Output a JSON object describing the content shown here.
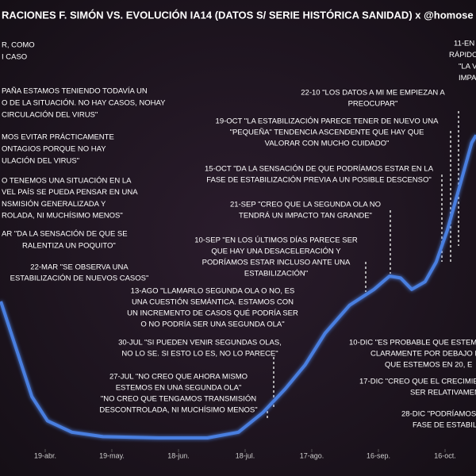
{
  "chart_data": {
    "type": "line",
    "title": "RACIONES F. SIMÓN VS. EVOLUCIÓN IA14 (DATOS S/ SERIE HISTÓRICA SANIDAD)  x @homose",
    "x": [
      -20,
      -13,
      -6,
      1,
      12,
      26,
      51,
      73,
      87,
      98,
      108,
      117,
      126,
      137,
      148,
      155,
      160,
      165,
      171,
      176,
      181,
      187,
      192,
      194
    ],
    "values": [
      225,
      150,
      75,
      37,
      19,
      12,
      10,
      10,
      19,
      50,
      87,
      125,
      175,
      219,
      244,
      265,
      262,
      244,
      256,
      287,
      337,
      412,
      475,
      487
    ],
    "color": "#4a7fe0",
    "xlim": [
      -20.36,
      193.93
    ],
    "ylim": [
      0,
      550
    ],
    "xticks": [
      {
        "value": 0,
        "label": "19-abr."
      },
      {
        "value": 30,
        "label": "19-may."
      },
      {
        "value": 60,
        "label": "18-jun."
      },
      {
        "value": 90,
        "label": "18-jul."
      },
      {
        "value": 120,
        "label": "17-ago."
      },
      {
        "value": 150,
        "label": "16-sep."
      },
      {
        "value": 180,
        "label": "16-oct."
      }
    ],
    "annotations": [
      [
        "R, COMO",
        "I CASO"
      ],
      [
        "PAÑA ESTAMOS TENIENDO TODAVÍA UN",
        "O DE LA SITUACIÓN.  NO HAY CASOS, NOHAY",
        "CIRCULACIÓN DEL VIRUS\""
      ],
      [
        "MOS EVITAR PRÁCTICAMENTE",
        "ONTAGIOS PORQUE NO HAY",
        "ULACIÓN DEL VIRUS\""
      ],
      [
        "O TENEMOS UNA SITUACIÓN EN LA",
        "VEL PAÍS SE PUEDA PENSAR EN UNA",
        "NSMISIÓN GENERALIZADA Y",
        "ROLADA, NI MUCHÍSIMO MENOS\""
      ],
      [
        "AR \"DA LA SENSACIÓN DE QUE SE",
        "RALENTIZA UN POQUITO\""
      ],
      [
        "22-MAR \"SE OBSERVA UNA",
        "ESTABILIZACIÓN  DE NUEVOS CASOS\""
      ],
      [
        "13-AGO \"LLAMARLO SEGUNDA OLA O NO, ES",
        "UNA CUESTIÓN SEMÁNTICA.  ESTAMOS CON",
        "UN INCREMENTO DE CASOS QUÉ PODRÍA SER",
        "O NO PODRÍA SER UNA SEGUNDA OLA\""
      ],
      [
        "30-JUL \"SI PUEDEN VENIR SEGUNDAS OLAS,",
        "NO LO SE. SI ESTO LO ES, NO LO PARECE\""
      ],
      [
        "27-JUL \"NO CREO QUE AHORA MISMO",
        "ESTEMOS EN UNA SEGUNDA OLA\"",
        "\"NO CREO QUE TENGAMOS TRANSMISIÓN",
        "DESCONTROLADA,  NI MUCHÍSIMO  MENOS\""
      ],
      [
        "10-SEP \"EN LOS ÚLTIMOS DÍAS PARECE SER",
        "QUE HAY UNA DESACELERACIÓN Y",
        "PODRÍAMOS  ESTAR INCLUSO ANTE UNA",
        "ESTABILIZACIÓN\""
      ],
      [
        "21-SEP \"CREO QUE LA SEGUNDA OLA NO",
        "TENDRÁ UN IMPACTO TAN GRANDE\""
      ],
      [
        "15-OCT \"DA LA SENSACIÓN DE QUE PODRÍAMOS  ESTAR EN LA",
        "FASE DE ESTABILIZACIÓN  PREVIA A UN POSIBLE DESCENSO\""
      ],
      [
        "19-OCT \"LA ESTABILIZACIÓN  PARECE TENER DE NUEVO UNA",
        "\"PEQUEÑA\" TENDENCIA ASCENDENTE QUE HAY QUE",
        "VALORAR CON MUCHO CUIDADO\""
      ],
      [
        "22-10 \"LOS DATOS A MI ME EMPIEZAN A",
        "PREOCUPAR\""
      ],
      [
        "11-EN",
        "RÁPIDO",
        "\"LA V",
        "IMPA"
      ],
      [
        "10-DIC \"ES PROBABLE QUE ESTEM",
        "CLARAMENTE POR DEBAJO DE LOS",
        "QUE ESTEMOS EN 20, E"
      ],
      [
        "17-DIC \"CREO QUE EL CRECIMIE",
        "SER RELATIVAMEN"
      ],
      [
        "28-DIC \"PODRÍAMOS",
        "FASE DE ESTABILI"
      ]
    ]
  }
}
